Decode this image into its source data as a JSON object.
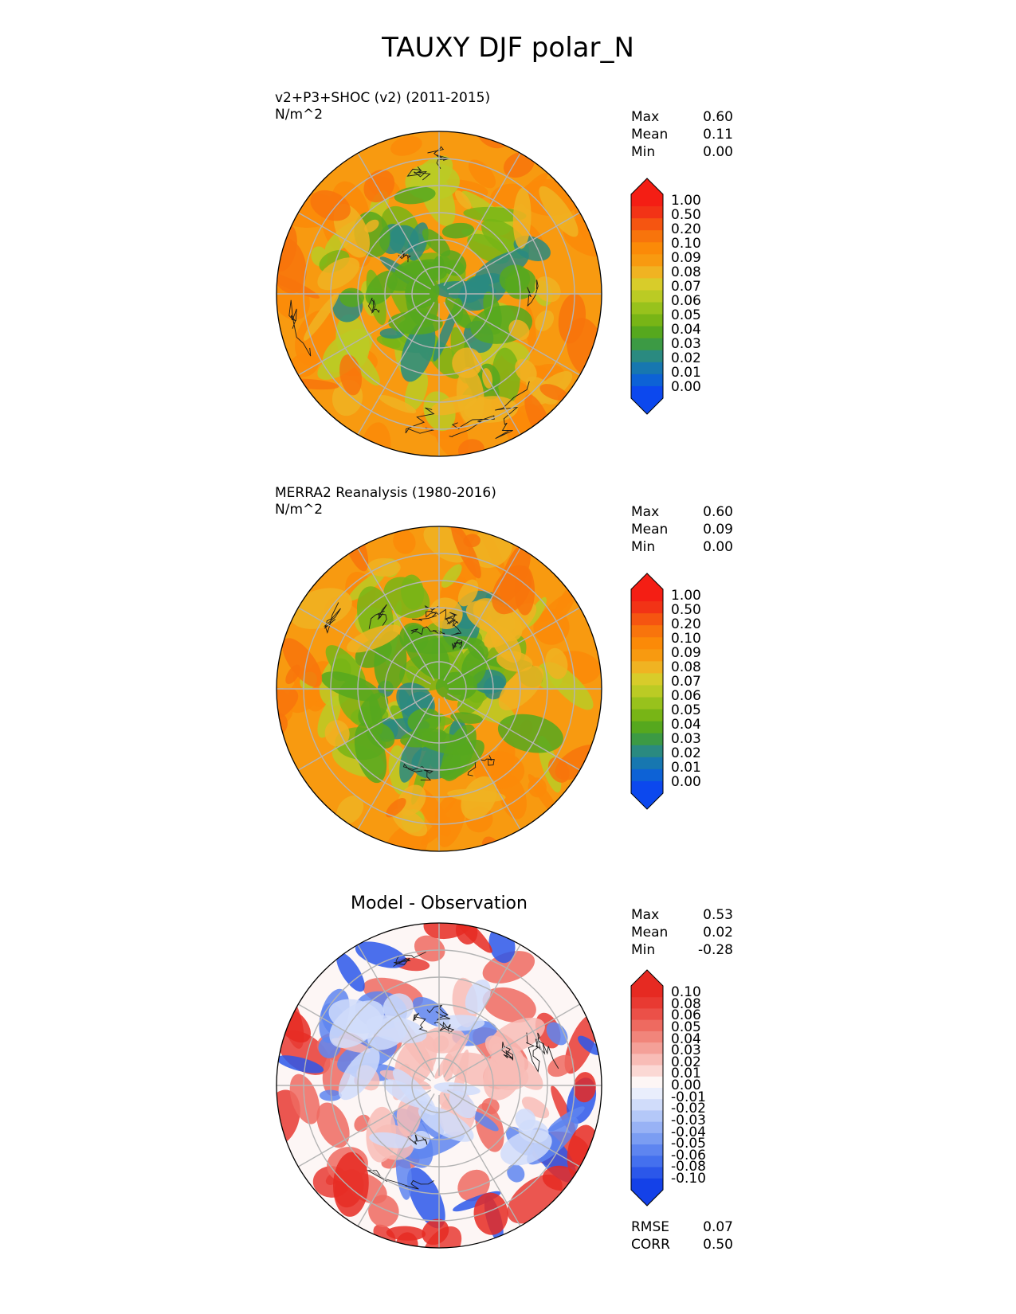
{
  "title": "TAUXY DJF polar_N",
  "colors": {
    "abs_scale": [
      "#0c48ee",
      "#0d62d6",
      "#1777b0",
      "#2a8a80",
      "#3c9a44",
      "#56a81e",
      "#78b516",
      "#98c21c",
      "#bbcb24",
      "#d8cc2a",
      "#f0b322",
      "#f89a10",
      "#fb8a08",
      "#f8740c",
      "#f55511",
      "#f23316",
      "#f41e14"
    ],
    "diff_scale": [
      "#1441e8",
      "#2b57ea",
      "#4470ee",
      "#5e85f0",
      "#7b9df2",
      "#98b2f5",
      "#b4c8f8",
      "#d0dcfa",
      "#e9eefc",
      "#fdf6f5",
      "#fbd8d4",
      "#f8bcb6",
      "#f4a098",
      "#f1857b",
      "#ee6a60",
      "#eb5048",
      "#e83a32",
      "#e62a22"
    ]
  },
  "panels": [
    {
      "id": "test",
      "title_lines": [
        "v2+P3+SHOC (v2) (2011-2015)",
        "N/m^2"
      ],
      "stats": [
        {
          "label": "Max",
          "value": "0.60"
        },
        {
          "label": "Mean",
          "value": "0.11"
        },
        {
          "label": "Min",
          "value": "0.00"
        }
      ],
      "colorbar_ticks": [
        "1.00",
        "0.50",
        "0.20",
        "0.10",
        "0.09",
        "0.08",
        "0.07",
        "0.06",
        "0.05",
        "0.04",
        "0.03",
        "0.02",
        "0.01",
        "0.00"
      ],
      "scale": "abs"
    },
    {
      "id": "ref",
      "title_lines": [
        "MERRA2 Reanalysis (1980-2016)",
        "N/m^2"
      ],
      "stats": [
        {
          "label": "Max",
          "value": "0.60"
        },
        {
          "label": "Mean",
          "value": "0.09"
        },
        {
          "label": "Min",
          "value": "0.00"
        }
      ],
      "colorbar_ticks": [
        "1.00",
        "0.50",
        "0.20",
        "0.10",
        "0.09",
        "0.08",
        "0.07",
        "0.06",
        "0.05",
        "0.04",
        "0.03",
        "0.02",
        "0.01",
        "0.00"
      ],
      "scale": "abs"
    },
    {
      "id": "diff",
      "title": "Model - Observation",
      "stats": [
        {
          "label": "Max",
          "value": "0.53"
        },
        {
          "label": "Mean",
          "value": "0.02"
        },
        {
          "label": "Min",
          "value": "-0.28"
        }
      ],
      "colorbar_ticks": [
        "0.10",
        "0.08",
        "0.06",
        "0.05",
        "0.04",
        "0.03",
        "0.02",
        "0.01",
        "0.00",
        "-0.01",
        "-0.02",
        "-0.03",
        "-0.04",
        "-0.05",
        "-0.06",
        "-0.08",
        "-0.10"
      ],
      "scale": "diff",
      "metrics": [
        {
          "label": "RMSE",
          "value": "0.07"
        },
        {
          "label": "CORR",
          "value": "0.50"
        }
      ]
    }
  ]
}
